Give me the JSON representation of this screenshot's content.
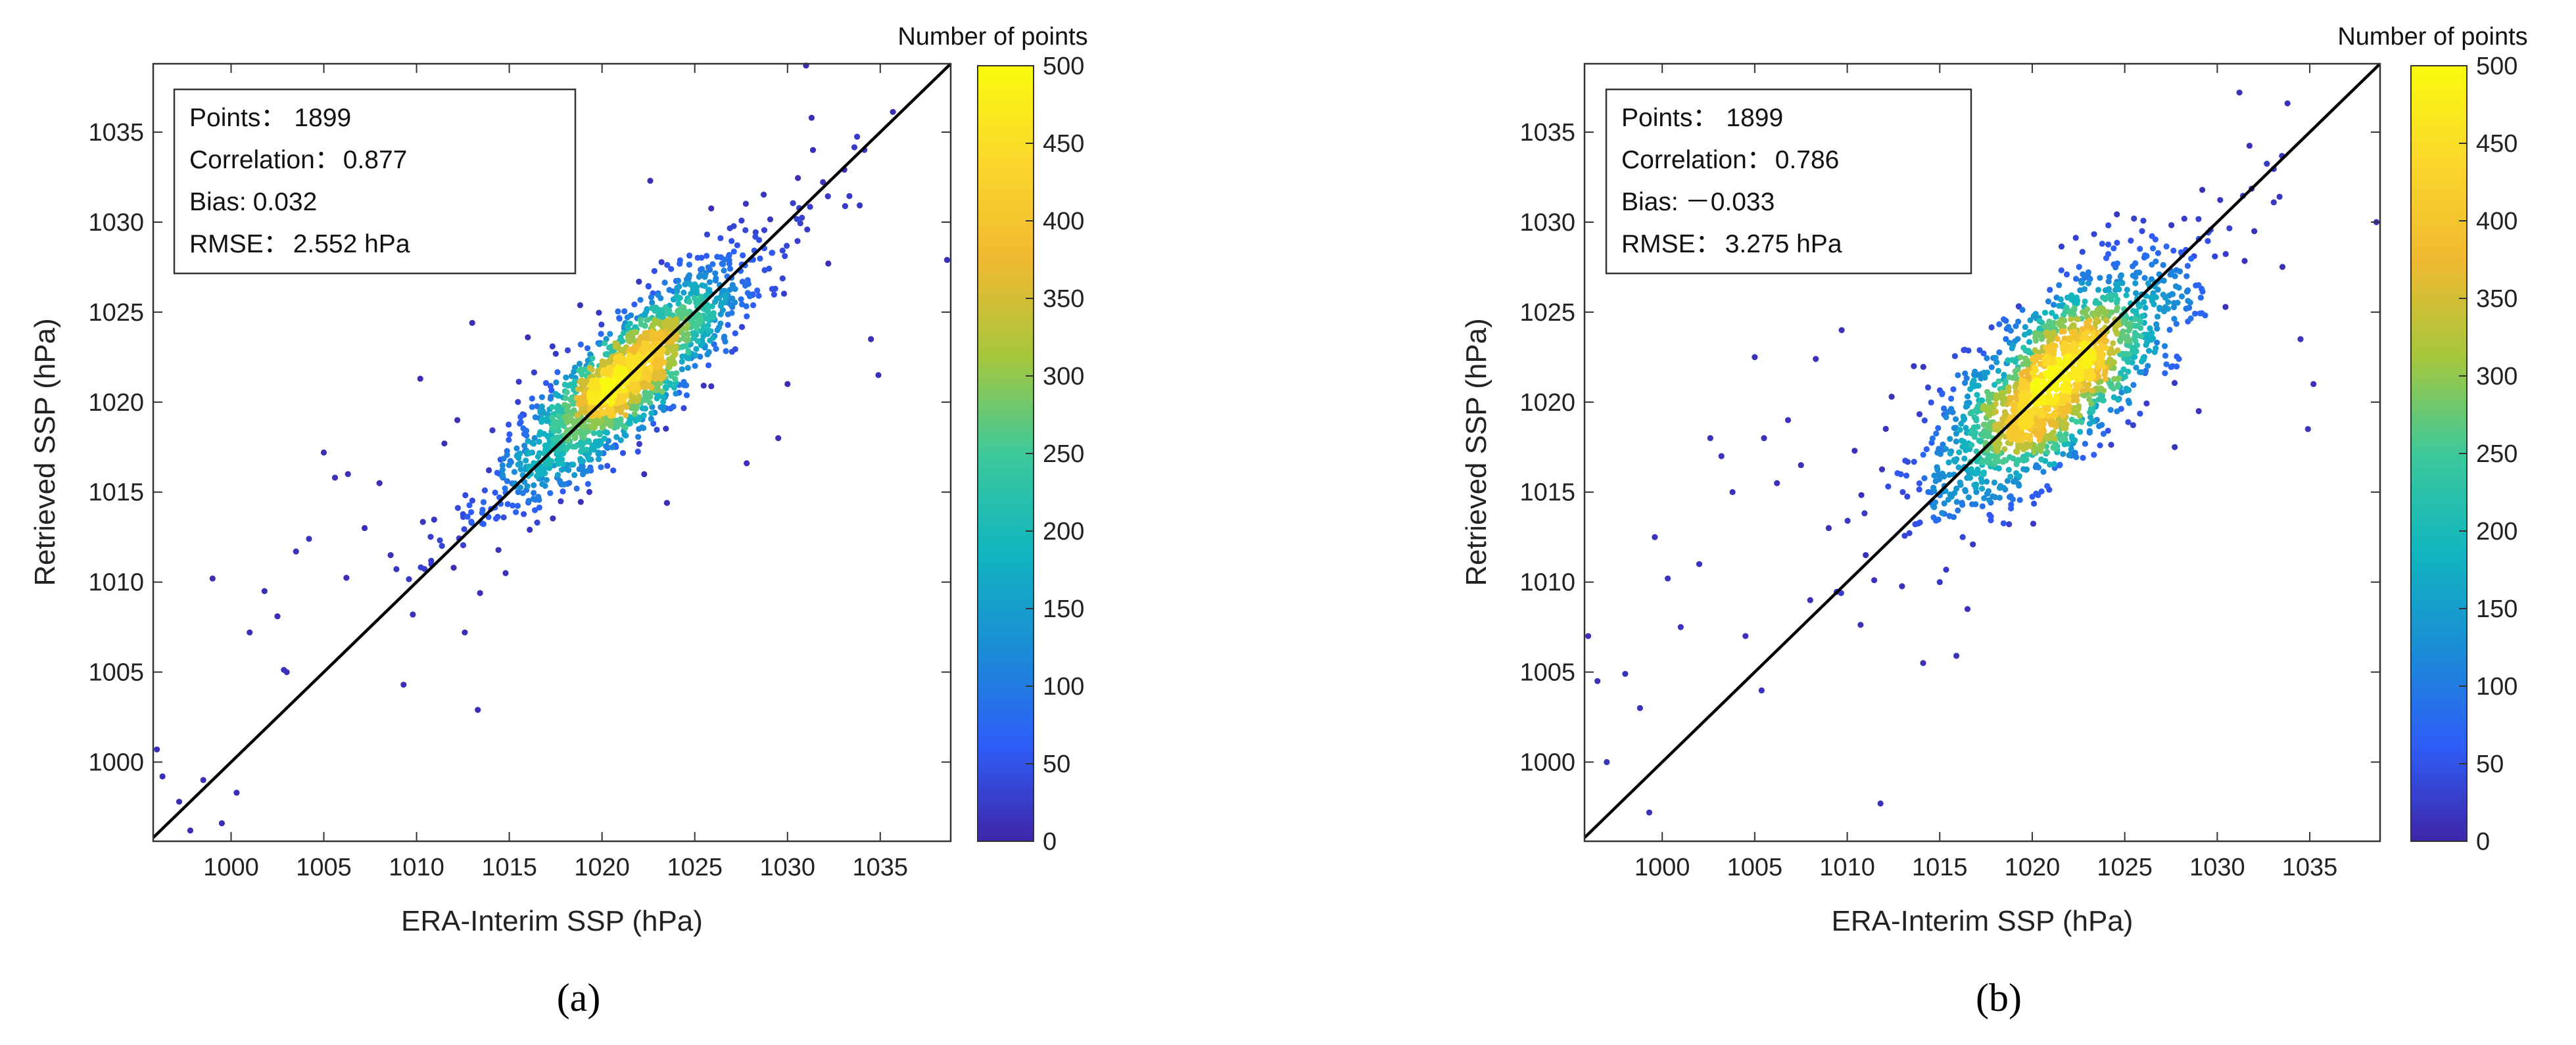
{
  "colorbar": {
    "title": "Number of points",
    "ticks": [
      0,
      50,
      100,
      150,
      200,
      250,
      300,
      350,
      400,
      450,
      500
    ],
    "range": [
      0,
      500
    ],
    "colors": [
      "#3e26a8",
      "#2e5ef8",
      "#1a8ed4",
      "#11b6bf",
      "#3dc99a",
      "#a6c73c",
      "#f0b930",
      "#fbd72c",
      "#f9fb0e"
    ]
  },
  "chart_data": [
    {
      "type": "scatter",
      "panel_label": "(a)",
      "title": "",
      "xlabel": "ERA-Interim SSP (hPa)",
      "ylabel": "Retrieved SSP (hPa)",
      "xlim": [
        995.8,
        1038.8
      ],
      "ylim": [
        995.6,
        1038.8
      ],
      "xticks": [
        1000,
        1005,
        1010,
        1015,
        1020,
        1025,
        1030,
        1035
      ],
      "yticks": [
        1000,
        1005,
        1010,
        1015,
        1020,
        1025,
        1030,
        1035
      ],
      "reference_line": "1:1",
      "color_by": "point density (Number of points)",
      "stats": {
        "points_label": "Points：",
        "points": "1899",
        "correlation_label": "Correlation：",
        "correlation": "0.877",
        "bias_label": "Bias:",
        "bias": "0.032",
        "rmse_label": "RMSE：",
        "rmse": "2.552 hPa"
      },
      "points_summary": {
        "n": 1899,
        "center_x": 1021.2,
        "center_y": 1021.3,
        "sd_along": 4.0,
        "sd_across": 1.2
      },
      "sparse_points": [
        [
          996.0,
          1000.7
        ],
        [
          996.3,
          999.2
        ],
        [
          997.2,
          997.8
        ],
        [
          997.8,
          996.2
        ],
        [
          998.5,
          999.0
        ],
        [
          999.0,
          1010.2
        ],
        [
          999.5,
          996.6
        ],
        [
          1000.3,
          998.3
        ],
        [
          1001.0,
          1007.2
        ],
        [
          1001.8,
          1009.5
        ],
        [
          1002.5,
          1008.1
        ],
        [
          1003.0,
          1005.0
        ],
        [
          1003.5,
          1011.7
        ],
        [
          1004.2,
          1012.4
        ],
        [
          1005.0,
          1017.2
        ],
        [
          1005.6,
          1015.8
        ],
        [
          1006.3,
          1016.0
        ],
        [
          1007.2,
          1013.0
        ],
        [
          1008.0,
          1015.5
        ],
        [
          1008.6,
          1011.5
        ],
        [
          1009.3,
          1004.3
        ],
        [
          1009.8,
          1008.2
        ],
        [
          1010.2,
          1021.3
        ],
        [
          1010.8,
          1011.0
        ],
        [
          1011.5,
          1017.7
        ],
        [
          1012.0,
          1010.8
        ],
        [
          1012.6,
          1007.2
        ],
        [
          1013.3,
          1002.9
        ],
        [
          1013.0,
          1024.4
        ],
        [
          1012.2,
          1019.0
        ],
        [
          1014.8,
          1010.5
        ],
        [
          1016.0,
          1023.6
        ],
        [
          1022.6,
          1032.3
        ],
        [
          1023.5,
          1014.4
        ],
        [
          1027.8,
          1016.6
        ],
        [
          1029.5,
          1018.0
        ],
        [
          1030.0,
          1021.0
        ],
        [
          1031.0,
          1038.7
        ],
        [
          1031.3,
          1035.8
        ],
        [
          1032.2,
          1027.7
        ],
        [
          1034.5,
          1023.5
        ],
        [
          1034.9,
          1021.5
        ],
        [
          1038.6,
          1027.9
        ]
      ]
    },
    {
      "type": "scatter",
      "panel_label": "(b)",
      "title": "",
      "xlabel": "ERA-Interim SSP (hPa)",
      "ylabel": "Retrieved SSP (hPa)",
      "xlim": [
        995.8,
        1038.8
      ],
      "ylim": [
        995.6,
        1038.8
      ],
      "xticks": [
        1000,
        1005,
        1010,
        1015,
        1020,
        1025,
        1030,
        1035
      ],
      "yticks": [
        1000,
        1005,
        1010,
        1015,
        1020,
        1025,
        1030,
        1035
      ],
      "reference_line": "1:1",
      "color_by": "point density (Number of points)",
      "stats": {
        "points_label": "Points：",
        "points": "1899",
        "correlation_label": "Correlation：",
        "correlation": "0.786",
        "bias_label": "Bias:",
        "bias": "－0.033",
        "rmse_label": "RMSE：",
        "rmse": "3.275 hPa"
      },
      "points_summary": {
        "n": 1899,
        "center_x": 1021.2,
        "center_y": 1021.1,
        "sd_along": 3.9,
        "sd_across": 1.7
      },
      "sparse_points": [
        [
          996.0,
          1007.0
        ],
        [
          996.5,
          1004.5
        ],
        [
          997.0,
          1000.0
        ],
        [
          998.0,
          1004.9
        ],
        [
          998.8,
          1003.0
        ],
        [
          999.3,
          997.2
        ],
        [
          999.6,
          1012.5
        ],
        [
          1000.3,
          1010.2
        ],
        [
          1001.0,
          1007.5
        ],
        [
          1002.0,
          1011.0
        ],
        [
          1002.6,
          1018.0
        ],
        [
          1003.2,
          1017.0
        ],
        [
          1003.8,
          1015.0
        ],
        [
          1004.5,
          1007.0
        ],
        [
          1005.0,
          1022.5
        ],
        [
          1005.5,
          1018.0
        ],
        [
          1006.2,
          1015.5
        ],
        [
          1006.8,
          1019.0
        ],
        [
          1007.5,
          1016.5
        ],
        [
          1008.0,
          1009.0
        ],
        [
          1008.3,
          1022.4
        ],
        [
          1009.0,
          1013.0
        ],
        [
          1009.7,
          1024.0
        ],
        [
          1010.4,
          1017.3
        ],
        [
          1011.0,
          1011.5
        ],
        [
          1011.8,
          997.7
        ],
        [
          1012.4,
          1020.3
        ],
        [
          1013.0,
          1015.0
        ],
        [
          1013.6,
          1022.0
        ],
        [
          1014.1,
          1005.5
        ],
        [
          1015.0,
          1010.0
        ],
        [
          1015.9,
          1005.9
        ],
        [
          1016.5,
          1008.5
        ],
        [
          1024.0,
          1028.0
        ],
        [
          1025.5,
          1030.2
        ],
        [
          1027.7,
          1017.5
        ],
        [
          1029.0,
          1019.5
        ],
        [
          1031.2,
          1037.2
        ],
        [
          1032.0,
          1029.5
        ],
        [
          1034.5,
          1023.5
        ],
        [
          1034.9,
          1018.5
        ],
        [
          1035.2,
          1021.0
        ],
        [
          1038.6,
          1030.0
        ]
      ]
    }
  ]
}
